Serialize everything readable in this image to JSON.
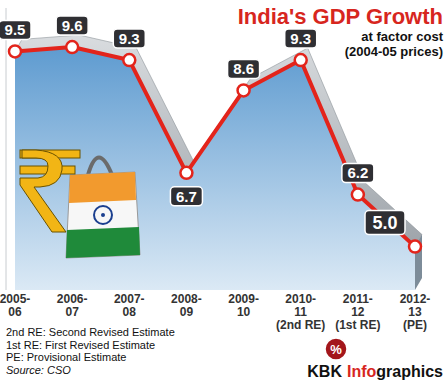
{
  "chart_data": {
    "type": "line",
    "title": "India's GDP Growth",
    "subtitle": [
      "at factor cost",
      "(2004-05 prices)"
    ],
    "categories": [
      "2005-06",
      "2006-07",
      "2007-08",
      "2008-09",
      "2009-10",
      "2010-11 (2nd RE)",
      "2011-12 (1st RE)",
      "2012-13 (PE)"
    ],
    "values": [
      9.5,
      9.6,
      9.3,
      6.7,
      8.6,
      9.3,
      6.2,
      5.0
    ],
    "value_labels": [
      "9.5",
      "9.6",
      "9.3",
      "6.7",
      "8.6",
      "9.3",
      "6.2",
      "5.0"
    ],
    "color": "#e3241b",
    "ylim": [
      4,
      10.5
    ],
    "tick_labels": "x",
    "data_labels": true,
    "marker": "circle",
    "unit_badge": "%",
    "notes": [
      "2nd RE: Second Revised Estimate",
      "1st RE: First Revised Estimate",
      "PE: Provisional Estimate"
    ],
    "source": "Source: CSO",
    "credit": {
      "brand": "KBK",
      "highlight": "Info",
      "rest": "graphics"
    }
  }
}
